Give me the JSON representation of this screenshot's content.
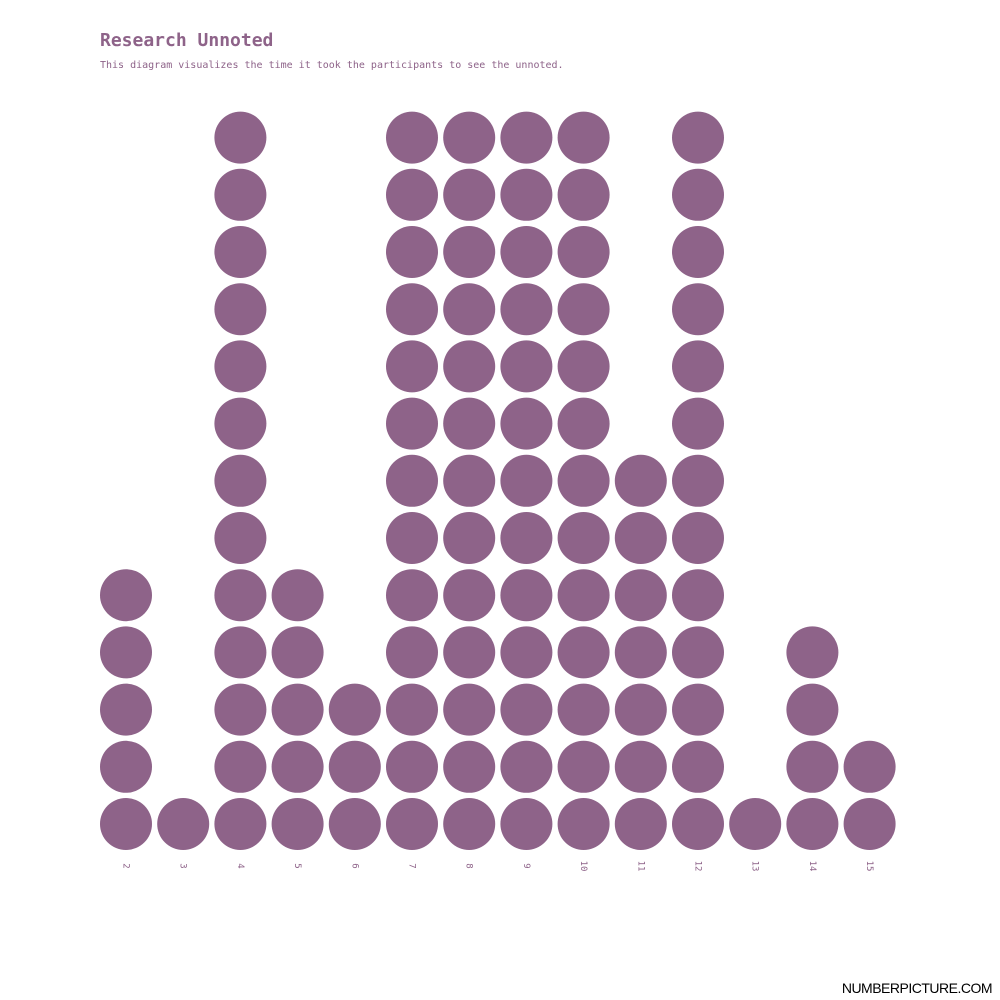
{
  "title": "Research Unnoted",
  "subtitle": "This diagram visualizes the time it took the participants to see the unnoted.",
  "footer": "NUMBERPICTURE.COM",
  "colors": {
    "dot": "#8e6389",
    "text": "#8e6389",
    "footer": "#000000"
  },
  "chart_data": {
    "type": "dot-histogram",
    "categories": [
      "2",
      "3",
      "4",
      "5",
      "6",
      "7",
      "8",
      "9",
      "10",
      "11",
      "12",
      "13",
      "14",
      "15"
    ],
    "values": [
      5,
      1,
      13,
      5,
      3,
      13,
      13,
      13,
      13,
      7,
      13,
      1,
      4,
      2
    ],
    "title": "Research Unnoted",
    "xlabel": "",
    "ylabel": "",
    "grid": false,
    "legend": "none"
  }
}
